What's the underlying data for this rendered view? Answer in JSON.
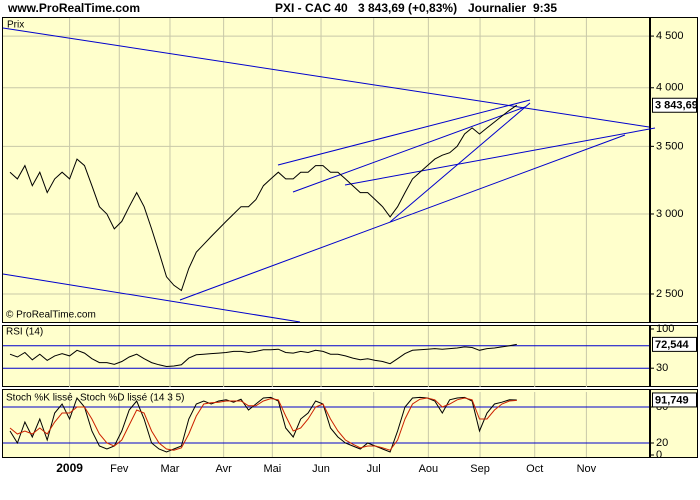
{
  "header": {
    "site": "www.ProRealTime.com",
    "ticker": "PXI - CAC 40",
    "quote": "3 843,69 (+0,83%)",
    "period": "Journalier",
    "time": "9:35"
  },
  "chart_data": [
    {
      "type": "line",
      "title": "Prix",
      "footer": "© ProRealTime.com",
      "log": true,
      "color": "#000000",
      "grid": true,
      "x": [
        -24,
        -21,
        -18,
        -15,
        -12,
        -9,
        -6,
        -3,
        0,
        3,
        6,
        9,
        12,
        15,
        18,
        21,
        24,
        27,
        30,
        33,
        36,
        39,
        42,
        45,
        48,
        51,
        54,
        57,
        60,
        63,
        66,
        69,
        72,
        75,
        78,
        81,
        84,
        87,
        90,
        93,
        96,
        99,
        102,
        105,
        108,
        111,
        114,
        117,
        120,
        123,
        126,
        129,
        132,
        135,
        138,
        141,
        144,
        147,
        150,
        153,
        156,
        159,
        162,
        165,
        168,
        171,
        174,
        177,
        180
      ],
      "values": [
        3300,
        3250,
        3350,
        3200,
        3300,
        3150,
        3250,
        3300,
        3250,
        3400,
        3350,
        3200,
        3050,
        3000,
        2900,
        2950,
        3050,
        3150,
        3050,
        2900,
        2750,
        2600,
        2550,
        2520,
        2650,
        2750,
        2800,
        2850,
        2900,
        2950,
        3000,
        3050,
        3050,
        3100,
        3200,
        3250,
        3300,
        3250,
        3250,
        3300,
        3300,
        3350,
        3350,
        3300,
        3300,
        3250,
        3200,
        3150,
        3150,
        3100,
        3050,
        2980,
        3050,
        3150,
        3250,
        3300,
        3350,
        3400,
        3430,
        3450,
        3500,
        3600,
        3650,
        3600,
        3650,
        3700,
        3750,
        3800,
        3843.69
      ],
      "last_label": "3 843,69",
      "xlim": [
        -26.8,
        233.2
      ],
      "ylim": [
        2340,
        4700
      ],
      "yticks": [
        {
          "value": 2500,
          "label": "2 500"
        },
        {
          "value": 3000,
          "label": "3 000"
        },
        {
          "value": 3500,
          "label": "3 500"
        },
        {
          "value": 4000,
          "label": "4 000"
        },
        {
          "value": 4500,
          "label": "4 500"
        }
      ]
    },
    {
      "type": "line",
      "title": "RSI (14)",
      "color": "#000000",
      "x": [
        -24,
        -21,
        -18,
        -15,
        -12,
        -9,
        -6,
        -3,
        0,
        3,
        6,
        9,
        12,
        15,
        18,
        21,
        24,
        27,
        30,
        33,
        36,
        39,
        42,
        45,
        48,
        51,
        54,
        57,
        60,
        63,
        66,
        69,
        72,
        75,
        78,
        81,
        84,
        87,
        90,
        93,
        96,
        99,
        102,
        105,
        108,
        111,
        114,
        117,
        120,
        123,
        126,
        129,
        132,
        135,
        138,
        141,
        144,
        147,
        150,
        153,
        156,
        159,
        162,
        165,
        168,
        171,
        174,
        177,
        180
      ],
      "values": [
        55,
        50,
        58,
        45,
        55,
        44,
        52,
        56,
        52,
        62,
        57,
        47,
        40,
        40,
        37,
        42,
        50,
        55,
        47,
        40,
        36,
        33,
        34,
        36,
        48,
        54,
        55,
        56,
        57,
        58,
        60,
        60,
        58,
        60,
        63,
        63,
        64,
        58,
        57,
        60,
        58,
        62,
        60,
        55,
        55,
        52,
        48,
        45,
        47,
        44,
        42,
        38,
        47,
        56,
        62,
        63,
        64,
        65,
        64,
        65,
        66,
        68,
        67,
        62,
        65,
        66,
        68,
        70,
        72.544
      ],
      "last_label": "72,544",
      "xlim": [
        -26.8,
        233.2
      ],
      "ylim": [
        0,
        100
      ],
      "yticks": [
        30,
        100
      ],
      "hlines": [
        30,
        70
      ]
    },
    {
      "type": "line",
      "x": [
        -24,
        -21,
        -18,
        -15,
        -12,
        -9,
        -6,
        -3,
        0,
        3,
        6,
        9,
        12,
        15,
        18,
        21,
        24,
        27,
        30,
        33,
        36,
        39,
        42,
        45,
        48,
        51,
        54,
        57,
        60,
        63,
        66,
        69,
        72,
        75,
        78,
        81,
        84,
        87,
        90,
        93,
        96,
        99,
        102,
        105,
        108,
        111,
        114,
        117,
        120,
        123,
        126,
        129,
        132,
        135,
        138,
        141,
        144,
        147,
        150,
        153,
        156,
        159,
        162,
        165,
        168,
        171,
        174,
        177,
        180
      ],
      "series": [
        {
          "name": "Stoch %K lissé",
          "color": "#000000",
          "values": [
            40,
            20,
            55,
            30,
            60,
            25,
            70,
            85,
            60,
            95,
            80,
            40,
            15,
            10,
            15,
            40,
            75,
            90,
            60,
            20,
            10,
            5,
            10,
            15,
            60,
            85,
            90,
            85,
            90,
            92,
            88,
            93,
            75,
            85,
            95,
            96,
            90,
            45,
            30,
            60,
            70,
            90,
            85,
            45,
            30,
            20,
            15,
            10,
            20,
            15,
            10,
            5,
            40,
            80,
            95,
            96,
            95,
            90,
            70,
            92,
            95,
            96,
            90,
            40,
            70,
            85,
            88,
            92,
            91.749
          ]
        },
        {
          "name": "Stoch %D lissé (14 3 5)",
          "color": "#cc2200",
          "values": [
            45,
            35,
            40,
            35,
            45,
            35,
            55,
            70,
            70,
            80,
            80,
            60,
            35,
            20,
            15,
            25,
            50,
            75,
            70,
            40,
            20,
            10,
            8,
            12,
            35,
            65,
            85,
            87,
            88,
            90,
            90,
            90,
            82,
            82,
            90,
            94,
            92,
            65,
            40,
            45,
            60,
            80,
            85,
            60,
            40,
            25,
            18,
            12,
            15,
            15,
            12,
            8,
            25,
            60,
            85,
            93,
            95,
            92,
            80,
            85,
            92,
            95,
            92,
            60,
            60,
            75,
            85,
            90,
            91
          ]
        }
      ],
      "last_label": "91,749",
      "xlim": [
        -26.8,
        233.2
      ],
      "ylim": [
        0,
        100
      ],
      "yticks": [
        0,
        20,
        80
      ],
      "hlines": [
        20,
        80
      ],
      "xticks": [
        {
          "value": 0,
          "label": "2009"
        },
        {
          "value": 20,
          "label": "Fev"
        },
        {
          "value": 40.4,
          "label": "Mar"
        },
        {
          "value": 62,
          "label": "Avr"
        },
        {
          "value": 81.6,
          "label": "Mai"
        },
        {
          "value": 101.2,
          "label": "Jun"
        },
        {
          "value": 122.4,
          "label": "Jul"
        },
        {
          "value": 144.4,
          "label": "Aou"
        },
        {
          "value": 165.2,
          "label": "Sep"
        },
        {
          "value": 187.2,
          "label": "Oct"
        },
        {
          "value": 208,
          "label": "Nov"
        }
      ]
    }
  ]
}
